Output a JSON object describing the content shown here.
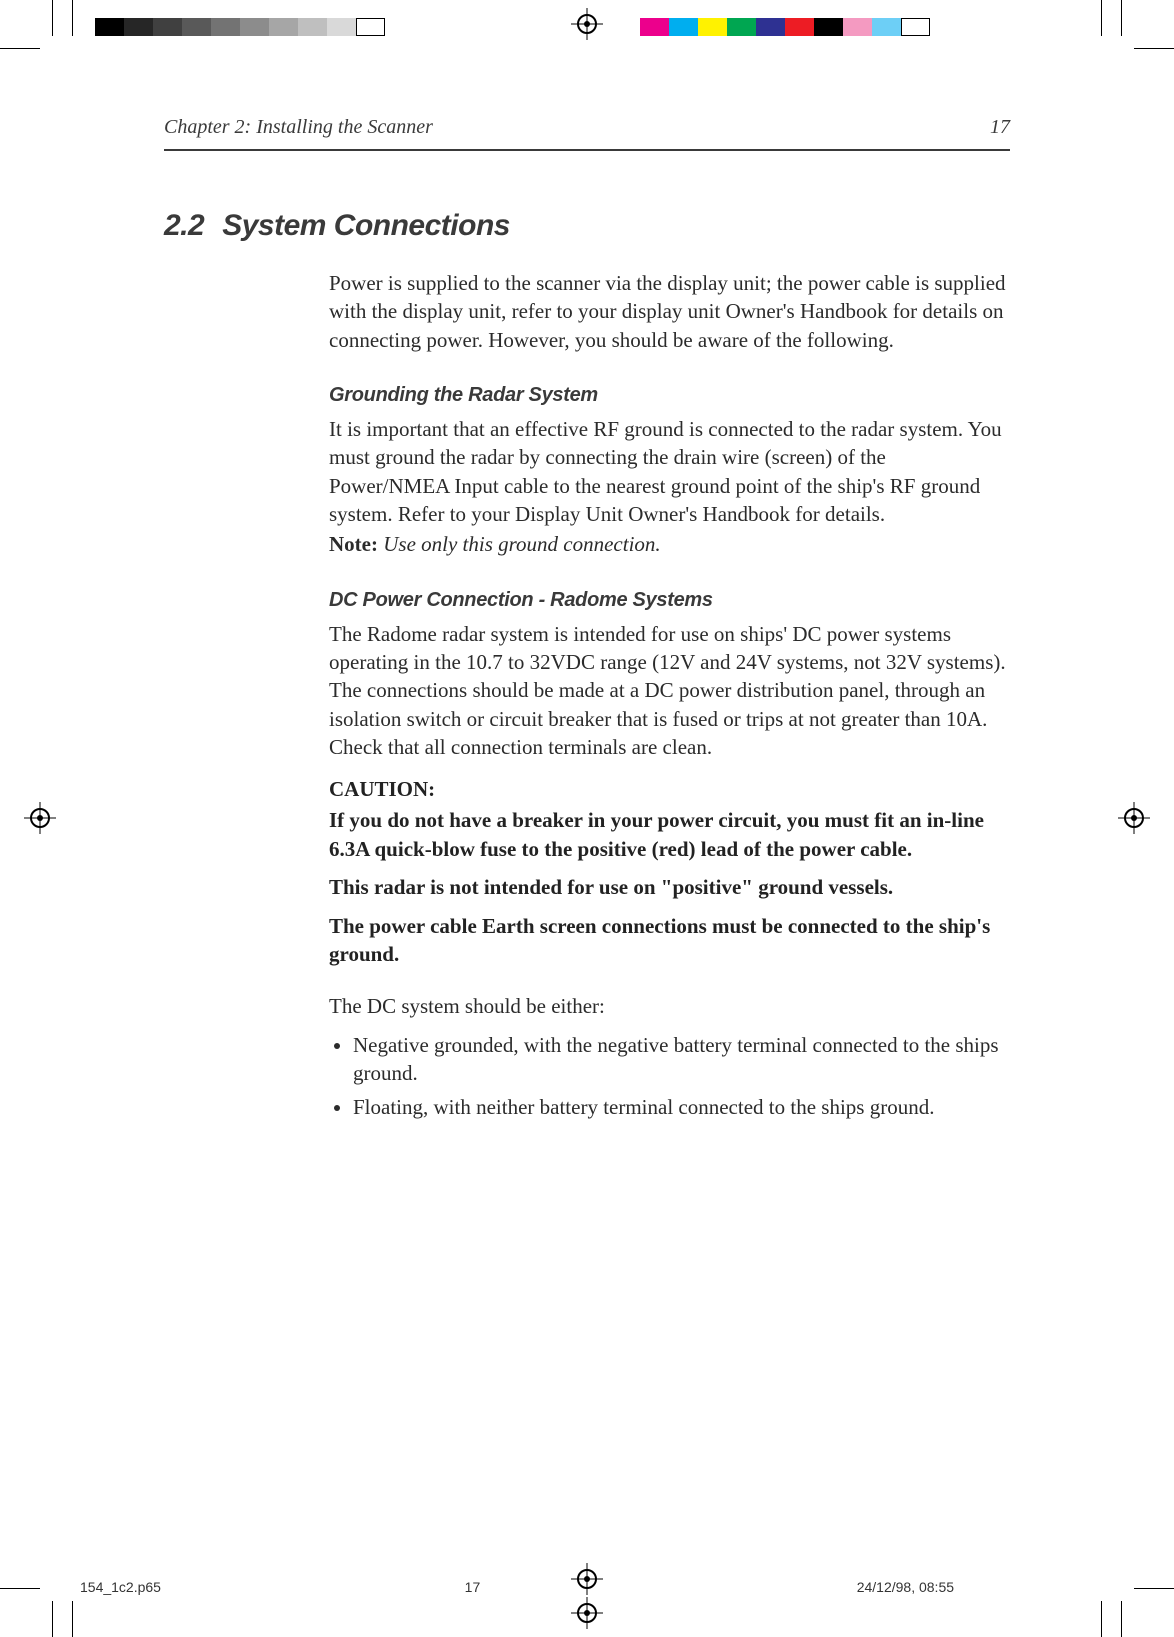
{
  "printer_marks": {
    "grayscale_swatches": [
      "#000000",
      "#262626",
      "#404040",
      "#595959",
      "#737373",
      "#8c8c8c",
      "#a6a6a6",
      "#bfbfbf",
      "#d9d9d9",
      "#ffffff"
    ],
    "color_swatches": [
      "#ec008c",
      "#00aeef",
      "#fff200",
      "#00a651",
      "#2e3192",
      "#ed1c24",
      "#000000",
      "#f49ac1",
      "#6dcff6",
      "#ffffff"
    ]
  },
  "header": {
    "chapter_line": "Chapter  2: Installing the Scanner",
    "page_number": "17"
  },
  "section": {
    "number": "2.2",
    "title": "System Connections"
  },
  "intro_para": "Power is supplied to the scanner via the display unit; the power cable is supplied with the display unit, refer to your display unit Owner's Handbook for details on connecting power. However, you should be aware of the following.",
  "grounding": {
    "heading": "Grounding the Radar System",
    "para": "It is important that an effective RF ground is connected to the radar system. You must ground the radar by connecting the drain wire (screen) of the Power/NMEA Input cable to the nearest ground point of the ship's RF ground system. Refer to your Display Unit Owner's Handbook for details.",
    "note_label": "Note:",
    "note_text": " Use only this ground connection."
  },
  "dc_power": {
    "heading": "DC Power Connection - Radome Systems",
    "para": "The Radome radar system is intended for use on ships' DC power systems operating in the 10.7 to 32VDC range (12V and 24V systems, not 32V systems). The connections should be made at a DC power distribution panel, through an isolation switch or circuit breaker that is fused or trips at not greater than 10A. Check that all connection terminals are clean.",
    "caution_label": "CAUTION:",
    "caution_lines": [
      "If you do not have a breaker in your power circuit, you must fit an in-line 6.3A quick-blow fuse to the positive (red) lead of the power cable.",
      "This radar is not intended for use on \"positive\" ground vessels.",
      "The power cable Earth screen connections must be connected to the ship's ground."
    ],
    "list_intro": "The DC system should be either:",
    "bullets": [
      "Negative grounded, with the negative battery terminal connected to the ships ground.",
      "Floating, with neither battery terminal connected to the ships ground."
    ]
  },
  "footer": {
    "file": "154_1c2.p65",
    "folio": "17",
    "timestamp": "24/12/98, 08:55"
  },
  "colors": {
    "text": "#2b2b2b",
    "rule": "#3a3a3a",
    "heading": "#3a3a3a",
    "background": "#ffffff"
  },
  "typography": {
    "body_family": "Times New Roman",
    "body_size_pt": 11,
    "heading_family": "Verdana",
    "section_title_size_pt": 16,
    "subhead_size_pt": 11,
    "running_head_style": "italic"
  }
}
